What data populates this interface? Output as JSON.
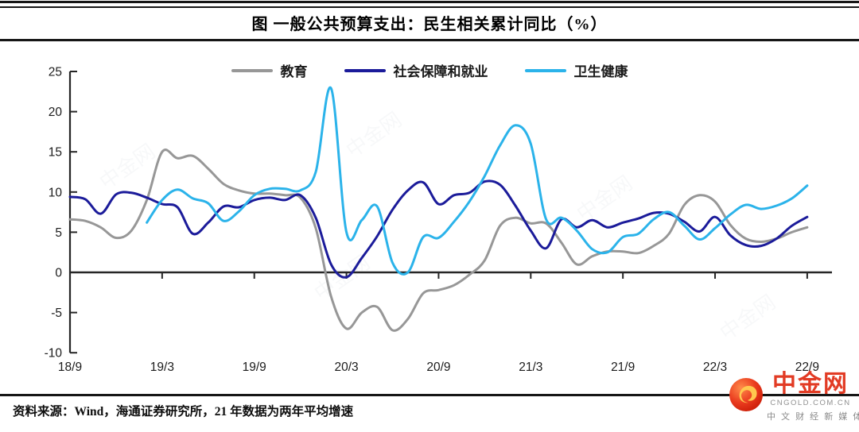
{
  "title": "图 一般公共预算支出：民生相关累计同比（%）",
  "source_note": "资料来源：Wind，海通证券研究所，21 年数据为两年平均增速",
  "watermark_text": "中金网",
  "logo": {
    "name": "中金网",
    "domain": "CNGOLD.COM.CN",
    "tagline": "中 文 财 经 新 媒 体"
  },
  "chart_data": {
    "type": "line",
    "title": "图 一般公共预算支出：民生相关累计同比（%）",
    "xlabel": "",
    "ylabel": "",
    "ylim": [
      -10,
      25
    ],
    "y_ticks": [
      25,
      20,
      15,
      10,
      5,
      0,
      -5,
      -10
    ],
    "x_axis_ticks": [
      "18/9",
      "19/3",
      "19/9",
      "20/3",
      "20/9",
      "21/3",
      "21/9",
      "22/3",
      "22/9"
    ],
    "grid": false,
    "legend_position": "top-center",
    "x": [
      "18/9",
      "18/10",
      "18/11",
      "18/12",
      "19/1",
      "19/2",
      "19/3",
      "19/4",
      "19/5",
      "19/6",
      "19/7",
      "19/8",
      "19/9",
      "19/10",
      "19/11",
      "19/12",
      "20/1",
      "20/2",
      "20/3",
      "20/4",
      "20/5",
      "20/6",
      "20/7",
      "20/8",
      "20/9",
      "20/10",
      "20/11",
      "20/12",
      "21/1",
      "21/2",
      "21/3",
      "21/4",
      "21/5",
      "21/6",
      "21/7",
      "21/8",
      "21/9",
      "21/10",
      "21/11",
      "21/12",
      "22/1",
      "22/2",
      "22/3",
      "22/4",
      "22/5",
      "22/6",
      "22/7",
      "22/8",
      "22/9"
    ],
    "series": [
      {
        "name": "教育",
        "color": "#979797",
        "values": [
          6.6,
          6.4,
          5.6,
          4.3,
          5.2,
          9.0,
          15.0,
          14.2,
          14.5,
          12.9,
          11.0,
          10.2,
          9.8,
          9.8,
          9.6,
          9.3,
          5.5,
          -3.0,
          -7.0,
          -5.0,
          -4.3,
          -7.2,
          -5.8,
          -2.6,
          -2.2,
          -1.6,
          -0.3,
          1.5,
          5.8,
          6.8,
          6.1,
          6.1,
          3.7,
          1.0,
          2.0,
          2.6,
          2.6,
          2.4,
          3.3,
          4.8,
          8.4,
          9.6,
          8.8,
          5.9,
          4.2,
          3.8,
          4.2,
          5.0,
          5.6
        ]
      },
      {
        "name": "社会保障和就业",
        "color": "#1b1b9a",
        "values": [
          9.4,
          9.1,
          7.3,
          9.7,
          9.9,
          9.3,
          8.5,
          8.1,
          4.8,
          6.2,
          8.2,
          8.1,
          9.0,
          9.3,
          9.0,
          9.6,
          6.8,
          1.0,
          -0.6,
          1.8,
          4.5,
          7.8,
          10.2,
          11.2,
          8.5,
          9.6,
          9.9,
          11.3,
          10.9,
          8.3,
          5.2,
          3.0,
          6.6,
          5.6,
          6.5,
          5.6,
          6.2,
          6.7,
          7.4,
          7.3,
          6.3,
          5.1,
          6.9,
          4.6,
          3.4,
          3.3,
          4.2,
          5.8,
          6.9
        ]
      },
      {
        "name": "卫生健康",
        "color": "#2bb3ea",
        "values": [
          null,
          null,
          null,
          null,
          null,
          6.2,
          9.0,
          10.3,
          9.2,
          8.6,
          6.4,
          7.6,
          9.6,
          10.4,
          10.4,
          10.2,
          12.5,
          22.9,
          5.0,
          6.5,
          8.2,
          1.2,
          0.0,
          4.4,
          4.3,
          6.3,
          8.8,
          12.0,
          15.8,
          18.3,
          16.0,
          6.6,
          6.8,
          5.2,
          2.9,
          2.5,
          4.4,
          4.8,
          6.6,
          7.5,
          5.8,
          4.1,
          5.5,
          7.2,
          8.4,
          7.9,
          8.3,
          9.2,
          10.8
        ]
      }
    ]
  }
}
